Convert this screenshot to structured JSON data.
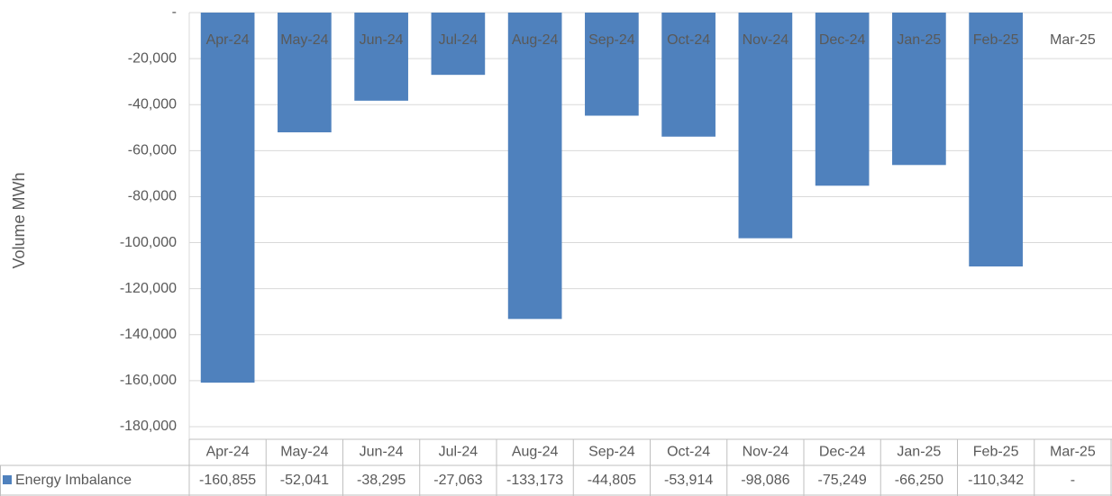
{
  "chart_data": {
    "type": "bar",
    "y_label": "Volume MWh",
    "categories": [
      "Apr-24",
      "May-24",
      "Jun-24",
      "Jul-24",
      "Aug-24",
      "Sep-24",
      "Oct-24",
      "Nov-24",
      "Dec-24",
      "Jan-25",
      "Feb-25",
      "Mar-25"
    ],
    "series": [
      {
        "name": "Energy Imbalance",
        "color": "#4f81bd",
        "values": [
          -160855,
          -52041,
          -38295,
          -27063,
          -133173,
          -44805,
          -53914,
          -98086,
          -75249,
          -66250,
          -110342,
          0
        ],
        "value_labels": [
          "-160,855",
          "-52,041",
          "-38,295",
          "-27,063",
          "-133,173",
          "-44,805",
          "-53,914",
          "-98,086",
          "-75,249",
          "-66,250",
          "-110,342",
          "-"
        ]
      }
    ],
    "ylim": [
      -180000,
      0
    ],
    "yticks": [
      {
        "value": 0,
        "label": "-"
      },
      {
        "value": -20000,
        "label": "-20,000"
      },
      {
        "value": -40000,
        "label": "-40,000"
      },
      {
        "value": -60000,
        "label": "-60,000"
      },
      {
        "value": -80000,
        "label": "-80,000"
      },
      {
        "value": -100000,
        "label": "-100,000"
      },
      {
        "value": -120000,
        "label": "-120,000"
      },
      {
        "value": -140000,
        "label": "-140,000"
      },
      {
        "value": -160000,
        "label": "-160,000"
      },
      {
        "value": -180000,
        "label": "-180,000"
      }
    ],
    "grid": true
  }
}
